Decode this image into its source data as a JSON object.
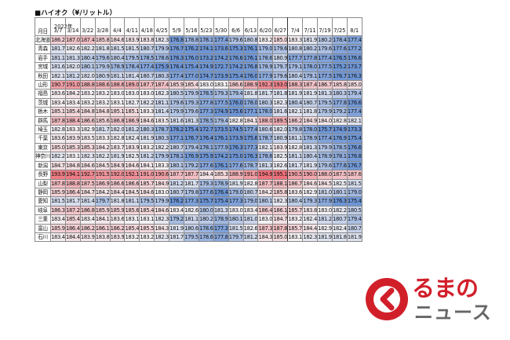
{
  "title": "■ハイオク（¥/リットル）",
  "header": {
    "corner_label": "月日",
    "year_label": "2022年",
    "dates": [
      "3/7",
      "3/14",
      "3/22",
      "3/28",
      "4/4",
      "4/11",
      "4/18",
      "4/25",
      "5/9",
      "5/16",
      "5/23",
      "5/30",
      "6/6",
      "6/13",
      "6/20",
      "6/27",
      "7/4",
      "7/11",
      "7/19",
      "7/25",
      "8/1"
    ]
  },
  "color_scale": {
    "low": "#6e96d6",
    "mid": "#f4f1f4",
    "high": "#ee6f78",
    "min": 176.5,
    "mid_value": 183.0,
    "max": 195.0
  },
  "rows": [
    {
      "pref": "北海道",
      "values": [
        186.2,
        187.0,
        187.4,
        185.8,
        184.6,
        183.9,
        183.8,
        182.3,
        176.8,
        178.8,
        178.1,
        177.4,
        179.6,
        180.8,
        183.2,
        185.0,
        183.3,
        181.9,
        180.2,
        178.4,
        177.4
      ]
    },
    {
      "pref": "青森",
      "values": [
        181.7,
        182.6,
        182.2,
        181.8,
        181.5,
        181.5,
        180.7,
        179.9,
        176.7,
        176.2,
        174.1,
        173.6,
        175.3,
        176.1,
        179.0,
        179.6,
        180.8,
        180.2,
        179.6,
        177.6,
        177.2
      ]
    },
    {
      "pref": "岩手",
      "values": [
        181.1,
        181.3,
        180.4,
        179.6,
        180.4,
        179.5,
        178.5,
        178.6,
        176.3,
        176.0,
        173.2,
        174.2,
        176.6,
        176.1,
        178.6,
        180.9,
        177.7,
        177.8,
        177.4,
        176.5,
        176.6
      ]
    },
    {
      "pref": "宮城",
      "values": [
        181.6,
        182.0,
        180.1,
        179.9,
        178.9,
        178.4,
        177.4,
        175.9,
        176.4,
        175.4,
        174.9,
        172.7,
        174.2,
        176.8,
        178.9,
        179.7,
        179.1,
        178.0,
        177.5,
        175.2,
        173.7
      ]
    },
    {
      "pref": "秋田",
      "values": [
        182.1,
        181.2,
        182.0,
        180.9,
        181.1,
        181.4,
        180.7,
        180.3,
        177.4,
        177.0,
        174.7,
        173.9,
        175.4,
        176.0,
        177.9,
        179.6,
        180.4,
        179.1,
        177.5,
        176.7,
        176.3
      ]
    },
    {
      "pref": "山形",
      "values": [
        190.7,
        191.0,
        188.8,
        188.6,
        188.6,
        189.0,
        187.7,
        187.4,
        185.9,
        185.4,
        183.0,
        183.1,
        186.6,
        188.9,
        192.3,
        193.0,
        188.3,
        187.4,
        186.7,
        185.8,
        185.0
      ]
    },
    {
      "pref": "福島",
      "values": [
        183.6,
        184.2,
        183.2,
        183.2,
        183.0,
        183.0,
        183.0,
        182.3,
        180.5,
        179.9,
        178.5,
        179.3,
        179.4,
        181.8,
        181.7,
        181.8,
        181.9,
        181.9,
        181.3,
        180.3,
        179.4
      ]
    },
    {
      "pref": "茨城",
      "values": [
        183.4,
        183.4,
        183.2,
        183.2,
        183.1,
        182.7,
        182.2,
        181.1,
        179.6,
        179.3,
        177.8,
        177.5,
        176.0,
        178.0,
        180.3,
        182.3,
        180.4,
        180.7,
        179.5,
        177.8,
        176.6
      ]
    },
    {
      "pref": "栃木",
      "values": [
        185.1,
        185.4,
        184.8,
        184.8,
        185.1,
        185.1,
        183.3,
        181.4,
        179.9,
        179.6,
        177.3,
        174.9,
        175.6,
        177.1,
        178.0,
        181.6,
        182.1,
        181.8,
        179.9,
        179.2,
        177.4
      ]
    },
    {
      "pref": "群馬",
      "values": [
        187.8,
        188.4,
        186.6,
        185.6,
        186.8,
        186.9,
        184.6,
        183.5,
        181.6,
        181.3,
        178.5,
        179.4,
        182.8,
        184.1,
        188.0,
        189.5,
        186.2,
        184.9,
        184.0,
        182.8,
        182.1
      ]
    },
    {
      "pref": "埼玉",
      "values": [
        182.8,
        183.3,
        182.9,
        181.7,
        182.0,
        181.2,
        180.3,
        178.7,
        176.2,
        175.4,
        172.7,
        173.5,
        174.5,
        177.4,
        180.6,
        182.0,
        179.8,
        178.0,
        175.7,
        174.9,
        173.3
      ]
    },
    {
      "pref": "千葉",
      "values": [
        183.6,
        183.9,
        183.5,
        183.3,
        182.8,
        182.4,
        181.9,
        180.3,
        177.1,
        176.7,
        176.4,
        176.1,
        173.9,
        175.6,
        178.7,
        180.9,
        181.1,
        178.9,
        177.4,
        176.9,
        175.4
      ]
    },
    {
      "pref": "東京",
      "values": [
        185.0,
        185.3,
        185.3,
        184.2,
        183.7,
        183.9,
        183.2,
        182.2,
        180.7,
        179.4,
        178.1,
        177.9,
        176.3,
        177.3,
        182.1,
        183.9,
        182.8,
        181.3,
        179.9,
        178.5,
        176.6
      ]
    },
    {
      "pref": "神奈川",
      "values": [
        182.2,
        183.1,
        182.3,
        182.2,
        181.9,
        182.5,
        181.2,
        179.9,
        178.1,
        176.9,
        175.9,
        174.2,
        175.0,
        176.3,
        178.6,
        182.5,
        181.1,
        180.4,
        178.9,
        178.1,
        176.8
      ]
    },
    {
      "pref": "新潟",
      "values": [
        184.7,
        184.8,
        184.6,
        184.5,
        184.9,
        184.6,
        184.1,
        183.3,
        180.1,
        179.2,
        177.6,
        176.1,
        177.6,
        178.7,
        181.3,
        182.6,
        181.7,
        181.9,
        179.6,
        177.6,
        176.7
      ]
    },
    {
      "pref": "長野",
      "values": [
        193.9,
        194.1,
        192.7,
        191.5,
        192.0,
        192.1,
        191.0,
        190.6,
        187.7,
        187.7,
        184.4,
        185.3,
        188.9,
        191.0,
        194.9,
        195.1,
        190.5,
        190.0,
        188.0,
        187.5,
        187.6
      ]
    },
    {
      "pref": "山梨",
      "values": [
        187.8,
        188.8,
        187.5,
        186.9,
        186.6,
        186.6,
        185.7,
        184.9,
        181.2,
        181.7,
        179.3,
        178.9,
        181.9,
        182.8,
        187.7,
        188.1,
        186.7,
        184.6,
        184.5,
        182.5,
        181.5
      ]
    },
    {
      "pref": "静岡",
      "values": [
        185.9,
        186.4,
        184.7,
        184.2,
        184.4,
        184.5,
        184.6,
        183.0,
        180.7,
        179.8,
        177.6,
        176.4,
        179.0,
        180.7,
        184.2,
        185.8,
        183.6,
        182.9,
        181.0,
        180.1,
        179.0
      ]
    },
    {
      "pref": "愛知",
      "values": [
        181.5,
        181.7,
        181.4,
        179.7,
        181.8,
        181.1,
        179.5,
        179.9,
        176.2,
        177.3,
        175.7,
        175.4,
        177.3,
        179.0,
        180.1,
        182.3,
        180.4,
        179.3,
        177.9,
        176.3,
        175.4
      ]
    },
    {
      "pref": "岐阜",
      "values": [
        186.3,
        187.2,
        186.8,
        185.9,
        185.9,
        185.6,
        185.4,
        184.6,
        183.4,
        182.6,
        180.0,
        181.3,
        183.0,
        183.4,
        186.4,
        186.1,
        185.7,
        183.8,
        183.0,
        182.2,
        180.5
      ]
    },
    {
      "pref": "三重",
      "values": [
        183.4,
        185.4,
        183.4,
        184.1,
        183.6,
        183.1,
        183.1,
        182.3,
        179.2,
        181.1,
        180.2,
        178.9,
        180.1,
        181.0,
        183.0,
        184.7,
        183.2,
        182.4,
        181.2,
        180.7,
        179.4
      ]
    },
    {
      "pref": "富山",
      "values": [
        185.9,
        186.4,
        186.2,
        186.1,
        186.2,
        185.4,
        185.5,
        184.3,
        181.9,
        180.6,
        178.6,
        177.3,
        181.5,
        182.6,
        187.3,
        187.8,
        185.7,
        184.4,
        182.9,
        182.4,
        180.7
      ]
    },
    {
      "pref": "石川",
      "values": [
        183.4,
        184.4,
        183.9,
        183.8,
        183.9,
        183.2,
        183.2,
        182.3,
        181.7,
        179.5,
        178.6,
        177.8,
        179.7,
        181.2,
        184.3,
        185.0,
        183.1,
        182.3,
        181.9,
        181.8,
        181.9
      ]
    }
  ],
  "logo": {
    "line1": "るまの",
    "line2": "ニュース",
    "brand_color": "#d11f2a",
    "sub_color": "#666666",
    "icon": "kuruma-logo-icon"
  }
}
